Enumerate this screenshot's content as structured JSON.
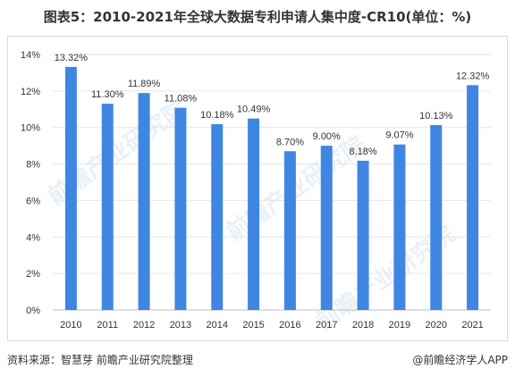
{
  "title": "图表5：2010-2021年全球大数据专利申请人集中度-CR10(单位：%)",
  "source": "资料来源：智慧芽 前瞻产业研究院整理",
  "brand": "@前瞻经济学人APP",
  "watermark": "前瞻产业研究院",
  "colors": {
    "bar": "#3f86e3",
    "grid": "#e6e6e6",
    "axis": "#bfbfbf",
    "text": "#333333"
  },
  "chart_data": {
    "type": "bar",
    "categories": [
      "2010",
      "2011",
      "2012",
      "2013",
      "2014",
      "2015",
      "2016",
      "2017",
      "2018",
      "2019",
      "2020",
      "2021"
    ],
    "values": [
      13.32,
      11.3,
      11.89,
      11.08,
      10.18,
      10.49,
      8.7,
      9.0,
      8.18,
      9.07,
      10.13,
      12.32
    ],
    "data_labels": [
      "13.32%",
      "11.30%",
      "11.89%",
      "11.08%",
      "10.18%",
      "10.49%",
      "8.70%",
      "9.00%",
      "8.18%",
      "9.07%",
      "10.13%",
      "12.32%"
    ],
    "yticks": [
      0,
      2,
      4,
      6,
      8,
      10,
      12,
      14
    ],
    "ytick_labels": [
      "0%",
      "2%",
      "4%",
      "6%",
      "8%",
      "10%",
      "12%",
      "14%"
    ],
    "ylim": [
      0,
      14
    ],
    "grid": true,
    "legend": "none"
  }
}
